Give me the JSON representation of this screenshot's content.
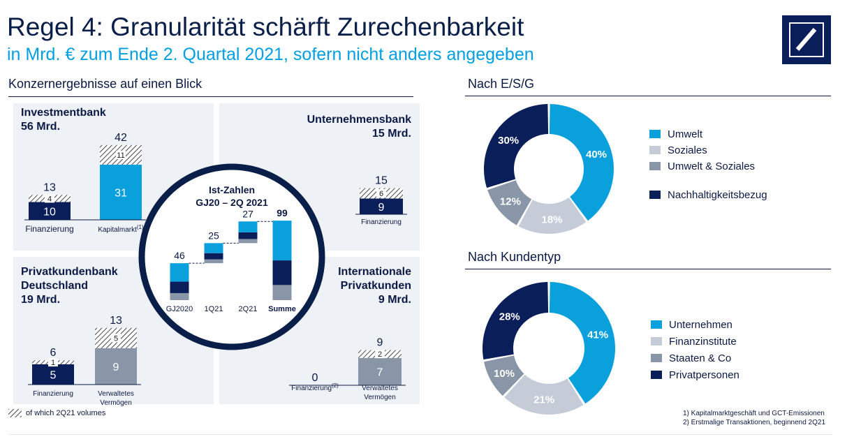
{
  "header": {
    "title": "Regel 4: Granularität schärft Zurechenbarkeit",
    "subtitle": "in Mrd. € zum Ende 2. Quartal 2021, sofern nicht anders angegeben"
  },
  "left": {
    "section_title": "Konzernergebnisse auf einen Blick",
    "legend_hatch": "of which 2Q21 volumes"
  },
  "colors": {
    "navy": "#0a1e5a",
    "cyan": "#0aa0dc",
    "gray": "#8896a8",
    "light": "#c5ccd8",
    "panel": "#eef1f5"
  },
  "chart_data": [
    {
      "type": "bar",
      "panel": "Investmentbank",
      "title": "Investmentbank",
      "total_label": "56 Mrd.",
      "categories": [
        "Finanzierung",
        "Kapitalmarkt"
      ],
      "category_notes": [
        "",
        "(1)"
      ],
      "series": [
        {
          "name": "",
          "values": [
            10,
            31
          ],
          "colors": [
            "navy",
            "cyan"
          ]
        },
        {
          "name": "of which 2Q21 volumes",
          "values": [
            4,
            11
          ]
        }
      ],
      "totals": [
        13,
        42
      ]
    },
    {
      "type": "bar",
      "panel": "Unternehmensbank",
      "title": "Unternehmensbank",
      "total_label": "15 Mrd.",
      "categories": [
        "Finanzierung"
      ],
      "series": [
        {
          "name": "",
          "values": [
            9
          ],
          "colors": [
            "navy"
          ]
        },
        {
          "name": "of which 2Q21 volumes",
          "values": [
            6
          ]
        }
      ],
      "totals": [
        15
      ]
    },
    {
      "type": "bar",
      "panel": "Privatkundenbank Deutschland",
      "title_lines": [
        "Privatkundenbank",
        "Deutschland"
      ],
      "total_label": "19 Mrd.",
      "categories": [
        "Finanzierung",
        "Verwaltetes Vermögen"
      ],
      "category_lines": [
        [
          "Finanzierung"
        ],
        [
          "Verwaltetes",
          "Vermögen"
        ]
      ],
      "series": [
        {
          "name": "",
          "values": [
            5,
            9
          ],
          "colors": [
            "navy",
            "gray"
          ]
        },
        {
          "name": "of which 2Q21 volumes",
          "values": [
            1,
            5
          ]
        }
      ],
      "totals": [
        6,
        13
      ]
    },
    {
      "type": "bar",
      "panel": "Internationale Privatkunden",
      "title_lines": [
        "Internationale",
        "Privatkunden"
      ],
      "total_label": "9 Mrd.",
      "categories": [
        "Finanzierung",
        "Verwaltetes Vermögen"
      ],
      "category_lines": [
        [
          "Finanzierung"
        ],
        [
          "Verwaltetes",
          "Vermögen"
        ]
      ],
      "category_notes": [
        "(2)",
        ""
      ],
      "series": [
        {
          "name": "",
          "values": [
            0,
            7
          ],
          "colors": [
            "navy",
            "gray"
          ]
        },
        {
          "name": "of which 2Q21 volumes",
          "values": [
            0,
            2
          ]
        }
      ],
      "totals": [
        0,
        9
      ]
    },
    {
      "type": "bar",
      "panel": "Ist-Zahlen",
      "title_lines": [
        "Ist-Zahlen",
        "GJ20 – 2Q 2021"
      ],
      "categories": [
        "GJ2020",
        "1Q21",
        "2Q21",
        "Summe"
      ],
      "totals": [
        46,
        25,
        27,
        99
      ]
    },
    {
      "type": "pie",
      "title": "Nach E/S/G",
      "labels": [
        "Umwelt",
        "Soziales",
        "Umwelt & Soziales",
        "Nachhaltigkeitsbezug"
      ],
      "values": [
        40,
        18,
        12,
        30
      ],
      "value_labels": [
        "40%",
        "18%",
        "12%",
        "30%"
      ],
      "colors": [
        "#0aa0dc",
        "#c5ccd8",
        "#8896a8",
        "#0a1e5a"
      ]
    },
    {
      "type": "pie",
      "title": "Nach Kundentyp",
      "labels": [
        "Unternehmen",
        "Finanzinstitute",
        "Staaten & Co",
        "Privatpersonen"
      ],
      "values": [
        41,
        21,
        10,
        28
      ],
      "value_labels": [
        "41%",
        "21%",
        "10%",
        "28%"
      ],
      "colors": [
        "#0aa0dc",
        "#c5ccd8",
        "#8896a8",
        "#0a1e5a"
      ]
    }
  ],
  "footnotes": [
    "1)   Kapitalmarktgeschäft und GCT-Emissionen",
    "2)   Erstmalige Transaktionen, beginnend 2Q21"
  ]
}
